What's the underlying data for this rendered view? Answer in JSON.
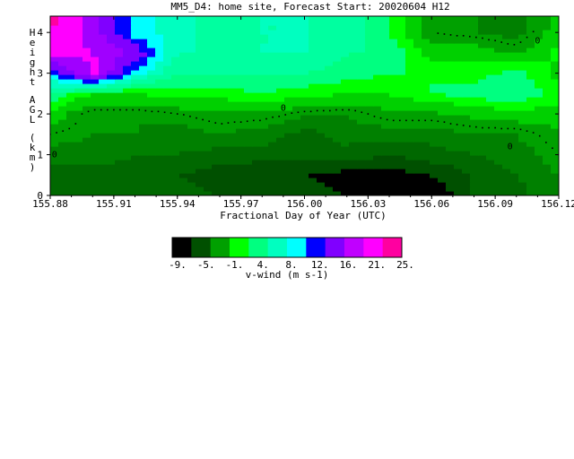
{
  "chart_data": {
    "type": "heatmap",
    "title": "MM5_D4: home site,  Forecast Start: 20020604 H12",
    "xlabel": "Fractional Day of Year (UTC)",
    "ylabel": "Height AGL (km)",
    "xlim": [
      155.88,
      156.12
    ],
    "ylim": [
      0,
      4.4
    ],
    "x_ticks": [
      "155.88",
      "155.91",
      "155.94",
      "155.97",
      "156.00",
      "156.03",
      "156.06",
      "156.09",
      "156.12"
    ],
    "y_ticks": [
      "0",
      "1",
      "2",
      "3",
      "4"
    ],
    "contour_label": "0",
    "grid": false,
    "colorbar": {
      "label": "v-wind (m s-1)",
      "tick_labels": [
        "-9.",
        "-5.",
        "-1.",
        "4.",
        "8.",
        "12.",
        "16.",
        "21.",
        "25."
      ],
      "colors": [
        "#000000",
        "#005000",
        "#00A000",
        "#00FF00",
        "#00FF80",
        "#00FFC0",
        "#00FFFF",
        "#0000FF",
        "#8000FF",
        "#C000FF",
        "#FF00FF",
        "#FF00A0"
      ]
    },
    "x": [
      155.88,
      155.9,
      155.92,
      155.94,
      155.96,
      155.98,
      156.0,
      156.02,
      156.04,
      156.06,
      156.08,
      156.1,
      156.12
    ],
    "y": [
      0,
      0.5,
      1.0,
      1.5,
      2.0,
      2.5,
      3.0,
      3.5,
      4.0,
      4.4
    ],
    "values": [
      [
        -5,
        -3,
        -3,
        -4,
        -5,
        -5,
        -6,
        -7,
        -7,
        -9,
        -5,
        -4,
        -1
      ],
      [
        -4,
        -4,
        -4,
        -5,
        -6,
        -7,
        -7,
        -8,
        -8,
        -7,
        -5,
        -3,
        -1
      ],
      [
        -2,
        -2,
        -3,
        -3,
        -4,
        -4,
        -4,
        -4,
        -5,
        -4,
        -3,
        -2,
        0
      ],
      [
        0,
        -1,
        -1,
        -2,
        -1,
        -2,
        -4,
        -2,
        -2,
        -2,
        -1,
        -1,
        1
      ],
      [
        3,
        -1,
        -1,
        0,
        1,
        1,
        -0.5,
        -1,
        1,
        1,
        2,
        3,
        3
      ],
      [
        8,
        4,
        4,
        5,
        5,
        6,
        5,
        4,
        4,
        6,
        7,
        8,
        5
      ],
      [
        14,
        22,
        13,
        8,
        8,
        8,
        8,
        7,
        6,
        6,
        5,
        7,
        3
      ],
      [
        22,
        21,
        18,
        10,
        10,
        10,
        10,
        8,
        8,
        3,
        3,
        1,
        5
      ],
      [
        23,
        20,
        13,
        11,
        9,
        10,
        10,
        9,
        6,
        0,
        -1,
        -2,
        3
      ],
      [
        24,
        20,
        13,
        11,
        9,
        10,
        10,
        9,
        6,
        0,
        -1,
        -2,
        2
      ]
    ]
  }
}
